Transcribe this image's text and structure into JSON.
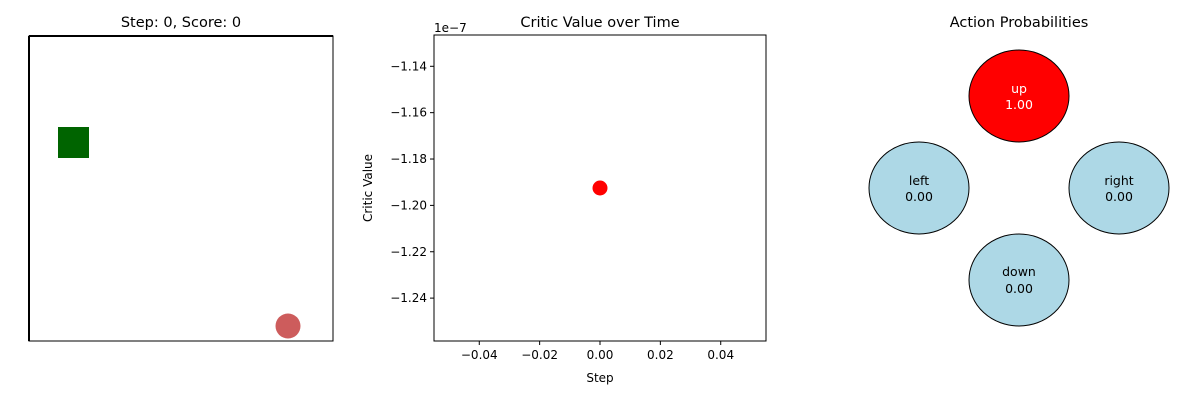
{
  "panels": {
    "grid": {
      "title": "Step: 0, Score: 0",
      "agent": {
        "shape": "square",
        "color": "#006400"
      },
      "goal": {
        "shape": "circle",
        "color": "#cd5c5c"
      }
    },
    "actions": {
      "title": "Action Probabilities",
      "nodes": [
        {
          "key": "up",
          "label": "up",
          "value": "1.00",
          "color": "#ff0000",
          "text_color": "#ffffff"
        },
        {
          "key": "left",
          "label": "left",
          "value": "0.00",
          "color": "#add8e6",
          "text_color": "#000000"
        },
        {
          "key": "right",
          "label": "right",
          "value": "0.00",
          "color": "#add8e6",
          "text_color": "#000000"
        },
        {
          "key": "down",
          "label": "down",
          "value": "0.00",
          "color": "#add8e6",
          "text_color": "#000000"
        }
      ]
    }
  },
  "chart_data": {
    "type": "scatter",
    "title": "Critic Value over Time",
    "xlabel": "Step",
    "ylabel": "Critic Value",
    "offset_label": "1e−7",
    "xlim": [
      -0.055,
      0.055
    ],
    "ylim": [
      -1.2585,
      -1.1265
    ],
    "xticks": [
      -0.04,
      -0.02,
      0.0,
      0.02,
      0.04
    ],
    "xtick_labels": [
      "−0.04",
      "−0.02",
      "0.00",
      "0.02",
      "0.04"
    ],
    "yticks": [
      -1.14,
      -1.16,
      -1.18,
      -1.2,
      -1.22,
      -1.24
    ],
    "ytick_labels": [
      "−1.14",
      "−1.16",
      "−1.18",
      "−1.20",
      "−1.22",
      "−1.24"
    ],
    "points": [
      {
        "x": 0.0,
        "y": -1.1925
      }
    ],
    "point_color": "#ff0000",
    "grid": false
  }
}
